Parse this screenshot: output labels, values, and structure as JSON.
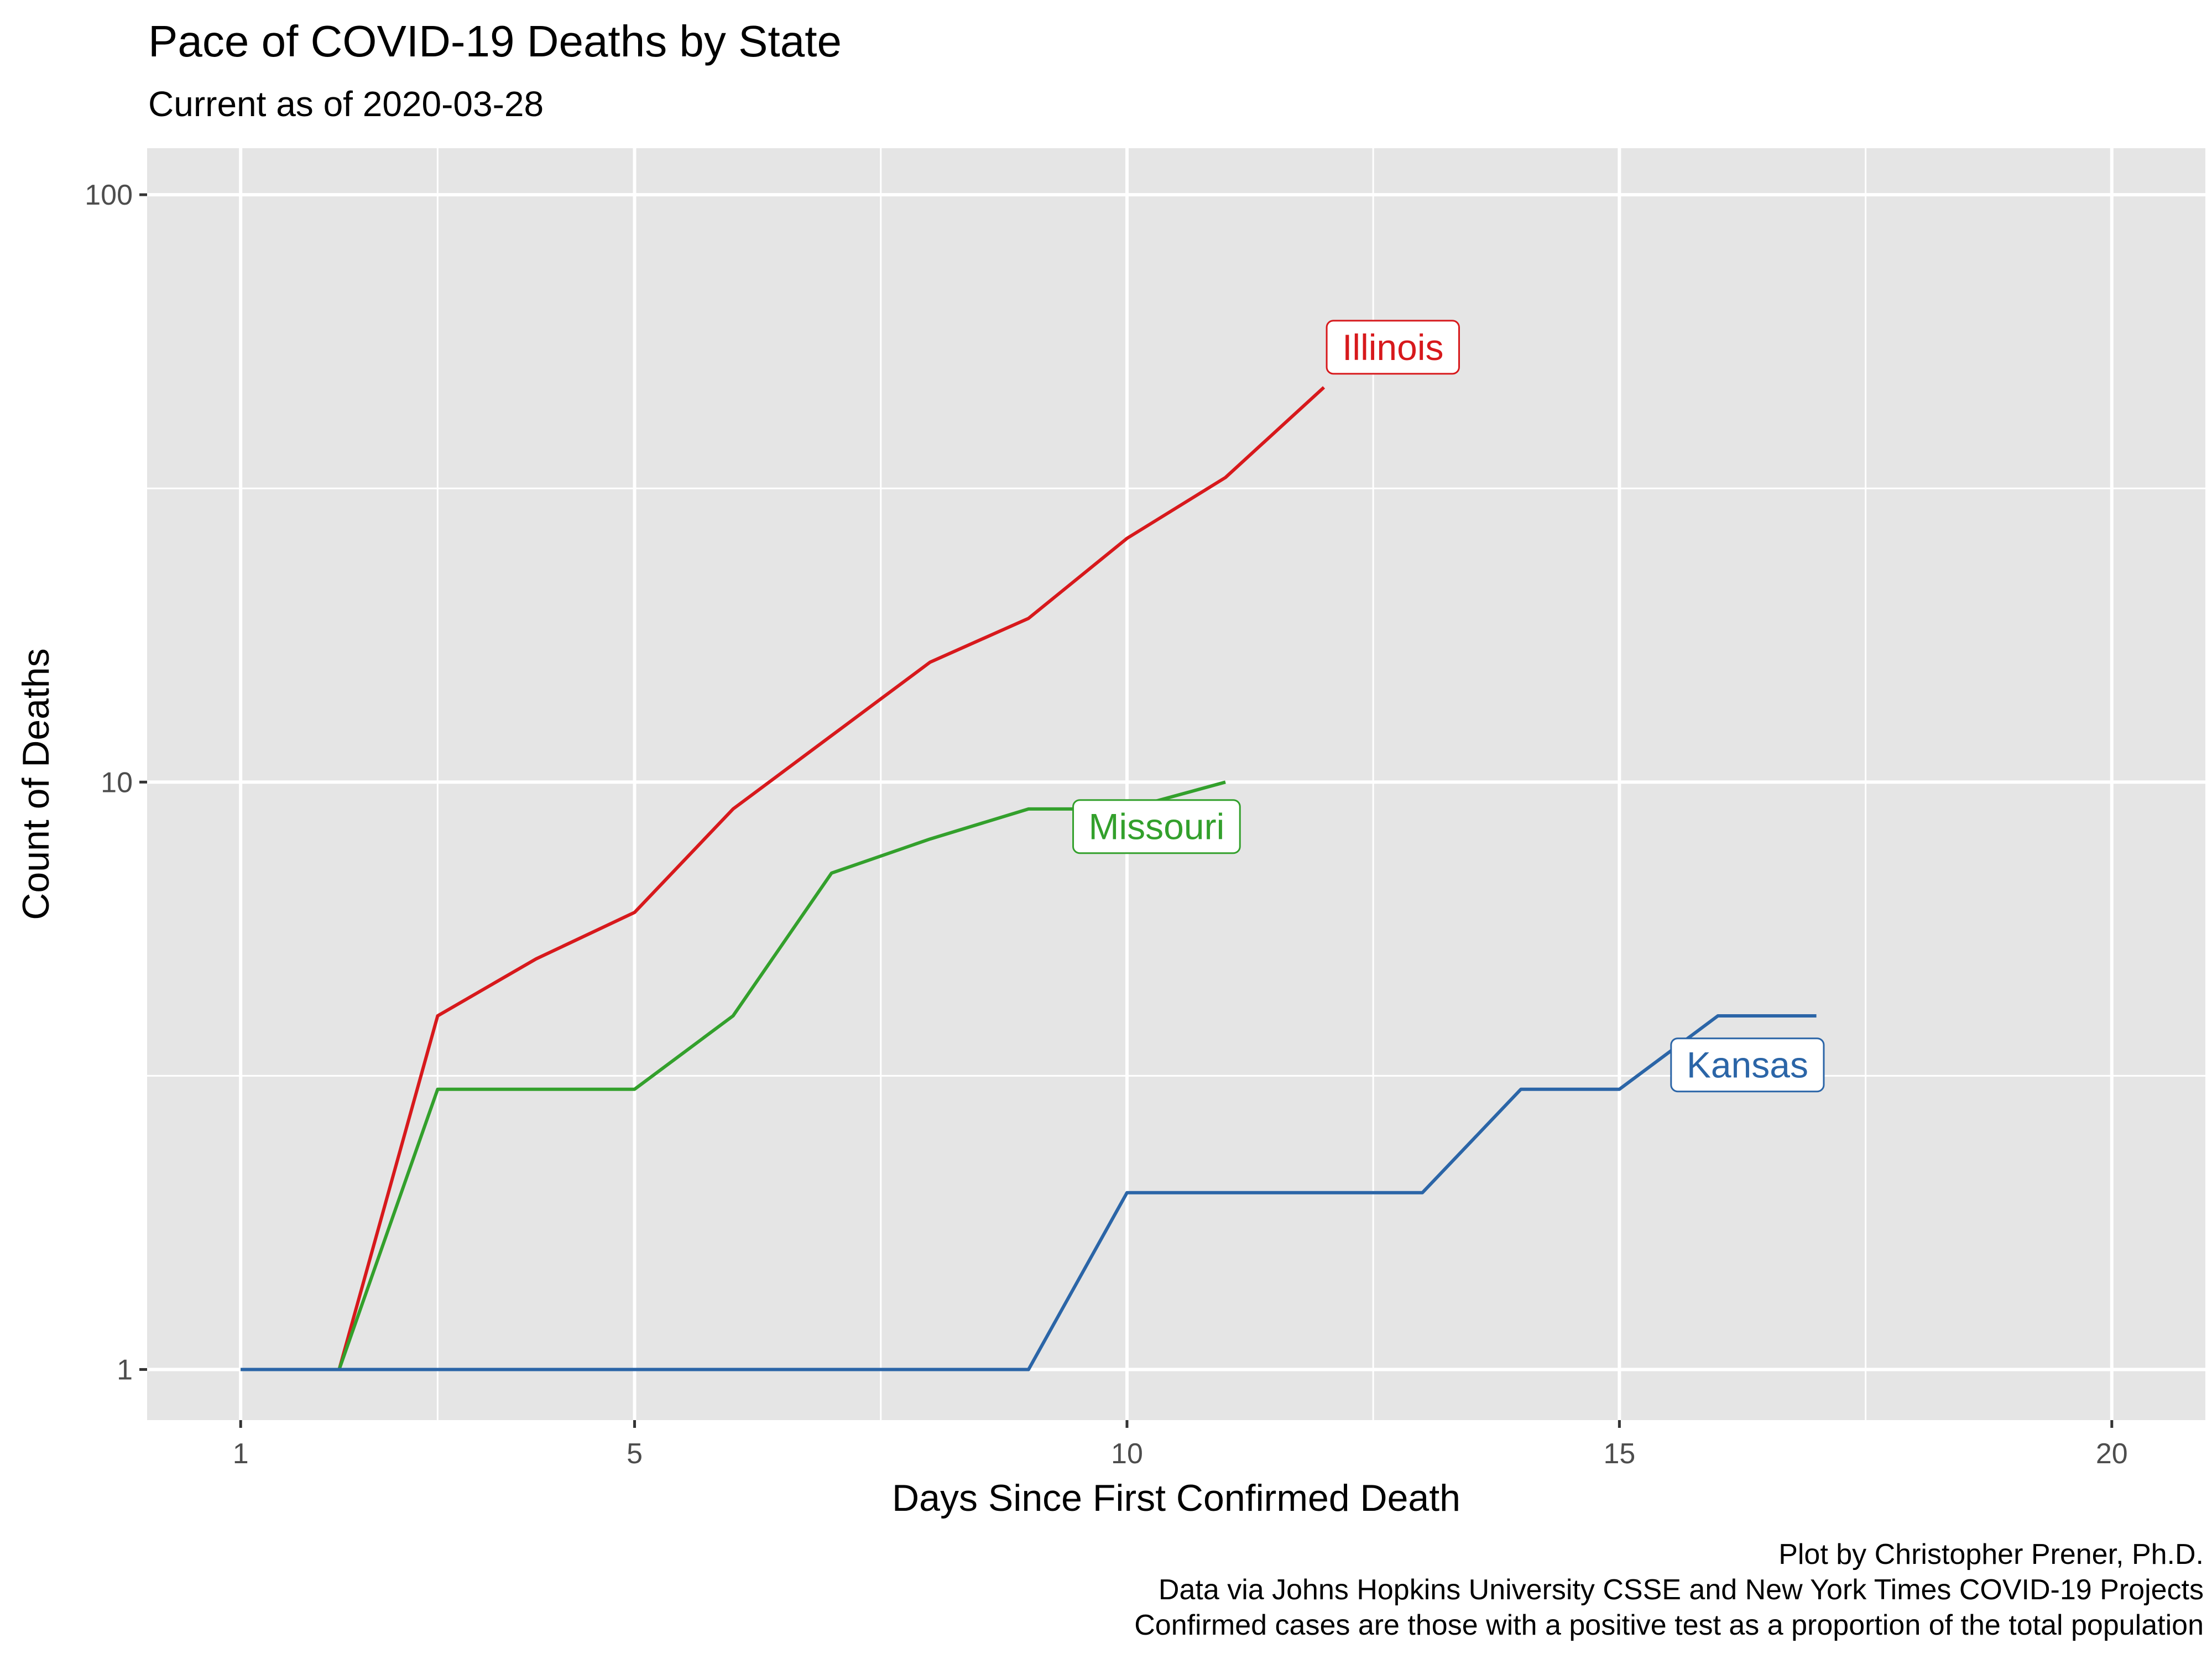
{
  "chart_data": {
    "type": "line",
    "title": "Pace of COVID-19 Deaths by State",
    "subtitle": "Current as of 2020-03-28",
    "xlabel": "Days Since First Confirmed Death",
    "ylabel": "Count of Deaths",
    "xscale": "linear",
    "yscale": "log10",
    "xlim": [
      0.05,
      20.95
    ],
    "ylim": [
      0.82,
      120
    ],
    "x_ticks": [
      1,
      5,
      10,
      15,
      20
    ],
    "x_tick_labels": [
      "1",
      "5",
      "10",
      "15",
      "20"
    ],
    "y_ticks": [
      1,
      10,
      100
    ],
    "y_tick_labels": [
      "1",
      "10",
      "100"
    ],
    "grid": true,
    "legend": "none (direct labels)",
    "series": [
      {
        "name": "Illinois",
        "color": "#d7191c",
        "label_at": [
          12.7,
          55
        ],
        "x": [
          1,
          2,
          3,
          4,
          5,
          6,
          7,
          8,
          9,
          10,
          11,
          12
        ],
        "y": [
          1,
          1,
          4,
          5,
          6,
          9,
          12,
          16,
          19,
          26,
          33,
          47
        ]
      },
      {
        "name": "Missouri",
        "color": "#33a02c",
        "label_at": [
          10.3,
          8.4
        ],
        "x": [
          1,
          2,
          3,
          4,
          5,
          6,
          7,
          8,
          9,
          10,
          11
        ],
        "y": [
          1,
          1,
          3,
          3,
          3,
          4,
          7,
          8,
          9,
          9,
          10
        ]
      },
      {
        "name": "Kansas",
        "color": "#2b65a7",
        "label_at": [
          16.3,
          3.3
        ],
        "x": [
          1,
          2,
          3,
          4,
          5,
          6,
          7,
          8,
          9,
          10,
          11,
          12,
          13,
          14,
          15,
          16,
          17
        ],
        "y": [
          1,
          1,
          1,
          1,
          1,
          1,
          1,
          1,
          1,
          2,
          2,
          2,
          2,
          3,
          3,
          4,
          4
        ]
      }
    ],
    "caption": [
      "Plot by Christopher Prener, Ph.D.",
      "Data via Johns Hopkins University CSSE and New York Times COVID-19 Projects",
      "Confirmed cases are those with a positive test as a proportion of the total population"
    ]
  }
}
